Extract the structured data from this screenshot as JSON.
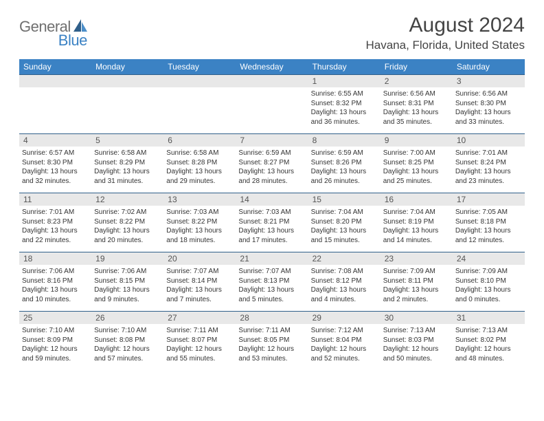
{
  "brand": {
    "part1": "General",
    "part2": "Blue"
  },
  "title": "August 2024",
  "location": "Havana, Florida, United States",
  "colors": {
    "header_bg": "#3b82c4",
    "header_text": "#ffffff",
    "daynum_bg": "#e8e8e8",
    "border": "#2f5f8a",
    "text": "#333333",
    "title_text": "#444444",
    "logo_gray": "#6f6f6f",
    "logo_blue": "#3b82c4"
  },
  "typography": {
    "title_fontsize": 30,
    "location_fontsize": 17,
    "dayheader_fontsize": 12,
    "body_fontsize": 10
  },
  "dayHeaders": [
    "Sunday",
    "Monday",
    "Tuesday",
    "Wednesday",
    "Thursday",
    "Friday",
    "Saturday"
  ],
  "weeks": [
    [
      null,
      null,
      null,
      null,
      {
        "n": "1",
        "sr": "6:55 AM",
        "ss": "8:32 PM",
        "dl": "13 hours and 36 minutes."
      },
      {
        "n": "2",
        "sr": "6:56 AM",
        "ss": "8:31 PM",
        "dl": "13 hours and 35 minutes."
      },
      {
        "n": "3",
        "sr": "6:56 AM",
        "ss": "8:30 PM",
        "dl": "13 hours and 33 minutes."
      }
    ],
    [
      {
        "n": "4",
        "sr": "6:57 AM",
        "ss": "8:30 PM",
        "dl": "13 hours and 32 minutes."
      },
      {
        "n": "5",
        "sr": "6:58 AM",
        "ss": "8:29 PM",
        "dl": "13 hours and 31 minutes."
      },
      {
        "n": "6",
        "sr": "6:58 AM",
        "ss": "8:28 PM",
        "dl": "13 hours and 29 minutes."
      },
      {
        "n": "7",
        "sr": "6:59 AM",
        "ss": "8:27 PM",
        "dl": "13 hours and 28 minutes."
      },
      {
        "n": "8",
        "sr": "6:59 AM",
        "ss": "8:26 PM",
        "dl": "13 hours and 26 minutes."
      },
      {
        "n": "9",
        "sr": "7:00 AM",
        "ss": "8:25 PM",
        "dl": "13 hours and 25 minutes."
      },
      {
        "n": "10",
        "sr": "7:01 AM",
        "ss": "8:24 PM",
        "dl": "13 hours and 23 minutes."
      }
    ],
    [
      {
        "n": "11",
        "sr": "7:01 AM",
        "ss": "8:23 PM",
        "dl": "13 hours and 22 minutes."
      },
      {
        "n": "12",
        "sr": "7:02 AM",
        "ss": "8:22 PM",
        "dl": "13 hours and 20 minutes."
      },
      {
        "n": "13",
        "sr": "7:03 AM",
        "ss": "8:22 PM",
        "dl": "13 hours and 18 minutes."
      },
      {
        "n": "14",
        "sr": "7:03 AM",
        "ss": "8:21 PM",
        "dl": "13 hours and 17 minutes."
      },
      {
        "n": "15",
        "sr": "7:04 AM",
        "ss": "8:20 PM",
        "dl": "13 hours and 15 minutes."
      },
      {
        "n": "16",
        "sr": "7:04 AM",
        "ss": "8:19 PM",
        "dl": "13 hours and 14 minutes."
      },
      {
        "n": "17",
        "sr": "7:05 AM",
        "ss": "8:18 PM",
        "dl": "13 hours and 12 minutes."
      }
    ],
    [
      {
        "n": "18",
        "sr": "7:06 AM",
        "ss": "8:16 PM",
        "dl": "13 hours and 10 minutes."
      },
      {
        "n": "19",
        "sr": "7:06 AM",
        "ss": "8:15 PM",
        "dl": "13 hours and 9 minutes."
      },
      {
        "n": "20",
        "sr": "7:07 AM",
        "ss": "8:14 PM",
        "dl": "13 hours and 7 minutes."
      },
      {
        "n": "21",
        "sr": "7:07 AM",
        "ss": "8:13 PM",
        "dl": "13 hours and 5 minutes."
      },
      {
        "n": "22",
        "sr": "7:08 AM",
        "ss": "8:12 PM",
        "dl": "13 hours and 4 minutes."
      },
      {
        "n": "23",
        "sr": "7:09 AM",
        "ss": "8:11 PM",
        "dl": "13 hours and 2 minutes."
      },
      {
        "n": "24",
        "sr": "7:09 AM",
        "ss": "8:10 PM",
        "dl": "13 hours and 0 minutes."
      }
    ],
    [
      {
        "n": "25",
        "sr": "7:10 AM",
        "ss": "8:09 PM",
        "dl": "12 hours and 59 minutes."
      },
      {
        "n": "26",
        "sr": "7:10 AM",
        "ss": "8:08 PM",
        "dl": "12 hours and 57 minutes."
      },
      {
        "n": "27",
        "sr": "7:11 AM",
        "ss": "8:07 PM",
        "dl": "12 hours and 55 minutes."
      },
      {
        "n": "28",
        "sr": "7:11 AM",
        "ss": "8:05 PM",
        "dl": "12 hours and 53 minutes."
      },
      {
        "n": "29",
        "sr": "7:12 AM",
        "ss": "8:04 PM",
        "dl": "12 hours and 52 minutes."
      },
      {
        "n": "30",
        "sr": "7:13 AM",
        "ss": "8:03 PM",
        "dl": "12 hours and 50 minutes."
      },
      {
        "n": "31",
        "sr": "7:13 AM",
        "ss": "8:02 PM",
        "dl": "12 hours and 48 minutes."
      }
    ]
  ],
  "labels": {
    "sunrise": "Sunrise:",
    "sunset": "Sunset:",
    "daylight": "Daylight:"
  }
}
